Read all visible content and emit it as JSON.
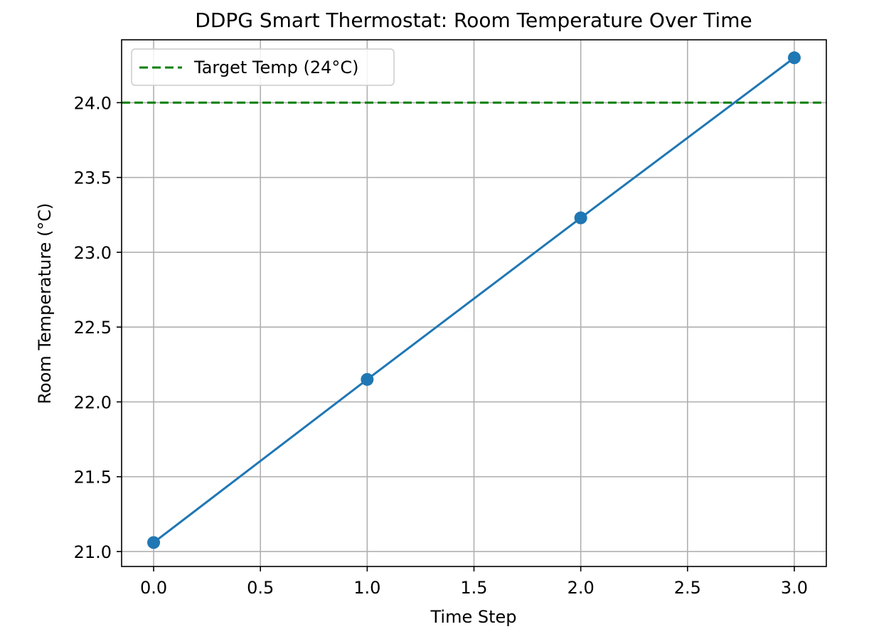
{
  "chart_data": {
    "type": "line",
    "title": "DDPG Smart Thermostat: Room Temperature Over Time",
    "xlabel": "Time Step",
    "ylabel": "Room Temperature (°C)",
    "xlim": [
      -0.15,
      3.15
    ],
    "ylim": [
      20.9,
      24.42
    ],
    "xticks": [
      0.0,
      0.5,
      1.0,
      1.5,
      2.0,
      2.5,
      3.0
    ],
    "xtick_labels": [
      "0.0",
      "0.5",
      "1.0",
      "1.5",
      "2.0",
      "2.5",
      "3.0"
    ],
    "yticks": [
      21.0,
      21.5,
      22.0,
      22.5,
      23.0,
      23.5,
      24.0
    ],
    "ytick_labels": [
      "21.0",
      "21.5",
      "22.0",
      "22.5",
      "23.0",
      "23.5",
      "24.0"
    ],
    "grid": true,
    "legend_position": "upper-left",
    "series": [
      {
        "x": [
          0,
          1,
          2,
          3
        ],
        "y": [
          21.06,
          22.15,
          23.23,
          24.3
        ],
        "color": "#1f77b4",
        "marker": "circle",
        "line_style": "solid"
      }
    ],
    "reference_lines": [
      {
        "name": "Target Temp (24°C)",
        "y": 24.0,
        "color": "#008000",
        "line_style": "dashed"
      }
    ]
  }
}
